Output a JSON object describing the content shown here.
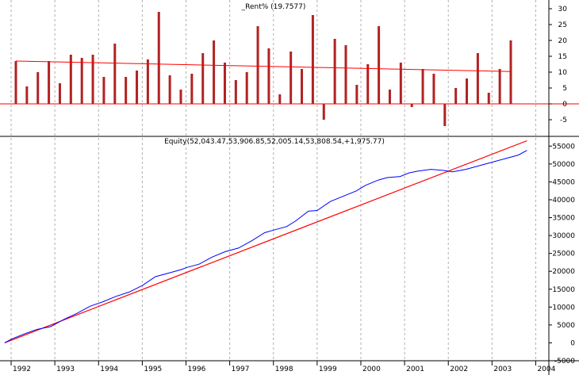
{
  "chart_data": [
    {
      "type": "bar",
      "title": "_Rent% (19.7577)",
      "ylim": [
        -10,
        32
      ],
      "yticks": [
        "-5",
        "0",
        "5",
        "10",
        "15",
        "20",
        "25",
        "30"
      ],
      "grid": "vertical dashed at year boundaries",
      "values": [
        13.5,
        5.5,
        10,
        13.5,
        6.5,
        15.5,
        14.5,
        15.5,
        8.5,
        19,
        8.5,
        10.5,
        14,
        29,
        9,
        4.5,
        9.5,
        16,
        20,
        13,
        7.5,
        10,
        24.5,
        17.5,
        3,
        16.5,
        11,
        28,
        -5,
        20.5,
        18.5,
        6,
        12.5,
        24.5,
        4.5,
        13,
        -1,
        11,
        9.5,
        -7,
        5,
        8,
        16,
        3.5,
        11,
        20
      ],
      "series": [
        {
          "name": "trend",
          "values": [
            13.5,
            10.2
          ]
        }
      ],
      "zero_line": 0,
      "colors": {
        "bars": "#b22222",
        "trend": "#ff0000",
        "zero_line": "#ff0000"
      }
    },
    {
      "type": "line",
      "title": "Equity(52,043.47,53,906.85,52,005.14,53,808.54,+1,975.77)",
      "ylim": [
        -5000,
        57500
      ],
      "yticks": [
        "-5000",
        "0",
        "5000",
        "10000",
        "15000",
        "20000",
        "25000",
        "30000",
        "35000",
        "40000",
        "45000",
        "50000",
        "55000"
      ],
      "xlim": [
        1991.8,
        2004.3
      ],
      "xticks": [
        "1992",
        "1993",
        "1994",
        "1995",
        "1996",
        "1997",
        "1998",
        "1999",
        "2000",
        "2001",
        "2002",
        "2003",
        "2004"
      ],
      "series": [
        {
          "name": "equity",
          "color": "#0000ff",
          "x": [
            1991.85,
            1992.0,
            1992.3,
            1992.6,
            1992.9,
            1993.2,
            1993.5,
            1993.8,
            1994.1,
            1994.4,
            1994.7,
            1995.0,
            1995.3,
            1995.6,
            1995.9,
            1996.0,
            1996.3,
            1996.6,
            1996.9,
            1997.2,
            1997.5,
            1997.8,
            1998.0,
            1998.3,
            1998.5,
            1998.8,
            1999.0,
            1999.3,
            1999.6,
            1999.9,
            2000.1,
            2000.4,
            2000.6,
            2000.9,
            2001.1,
            2001.3,
            2001.6,
            2001.9,
            2002.1,
            2002.4,
            2002.7,
            2003.0,
            2003.3,
            2003.6,
            2003.8
          ],
          "y": [
            0,
            1000,
            2500,
            3800,
            4500,
            6500,
            8200,
            10200,
            11500,
            13000,
            14200,
            16000,
            18500,
            19500,
            20500,
            21000,
            22000,
            24000,
            25500,
            26500,
            28500,
            30800,
            31500,
            32500,
            34000,
            36800,
            37000,
            39500,
            41000,
            42500,
            44000,
            45500,
            46200,
            46500,
            47500,
            48000,
            48500,
            48200,
            47800,
            48500,
            49500,
            50500,
            51500,
            52500,
            53800
          ]
        },
        {
          "name": "trend",
          "color": "#ff0000",
          "x": [
            1991.85,
            2003.8
          ],
          "y": [
            0,
            56500
          ]
        }
      ],
      "colors": {
        "equity": "#0000ff",
        "trend": "#ff0000"
      }
    }
  ]
}
